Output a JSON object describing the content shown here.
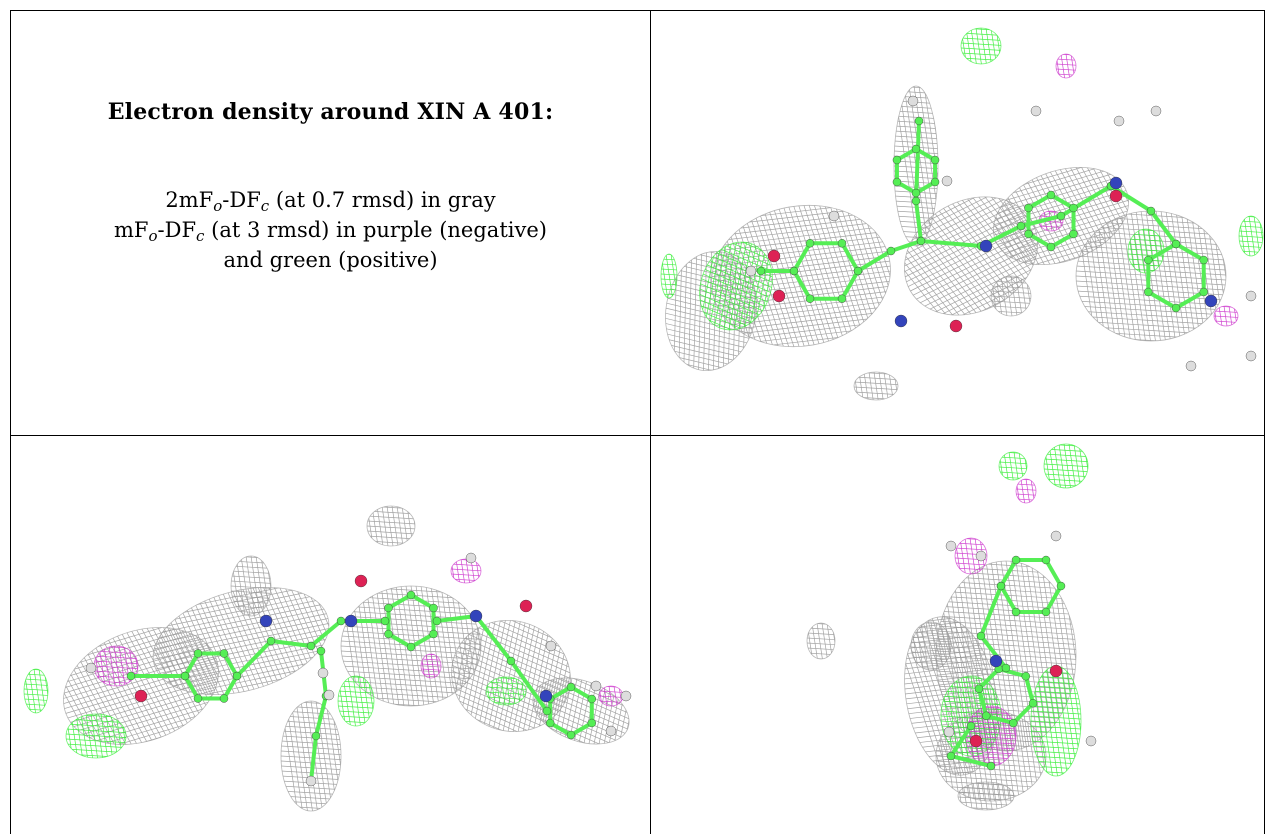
{
  "title": "Electron density around XIN A 401:",
  "legend": {
    "line1": {
      "a": "2mF",
      "o": "o",
      "b": "-DF",
      "c": "c",
      "rest": " (at 0.7 rmsd) in gray"
    },
    "line2": {
      "a": "mF",
      "o": "o",
      "b": "-DF",
      "c": "c",
      "rest": " (at 3 rmsd) in purple (negative)"
    },
    "line3": "and green (positive)"
  },
  "colors": {
    "mesh_2fofc": "#9a9a9a",
    "mesh_positive": "#33ee33",
    "mesh_negative": "#cc33cc",
    "carbon": "#55ee55",
    "nitrogen": "#3344bb",
    "oxygen": "#dd2255",
    "hydrogen": "#dddddd"
  },
  "panels": [
    {
      "name": "view-1"
    },
    {
      "name": "view-2"
    },
    {
      "name": "view-3"
    }
  ]
}
